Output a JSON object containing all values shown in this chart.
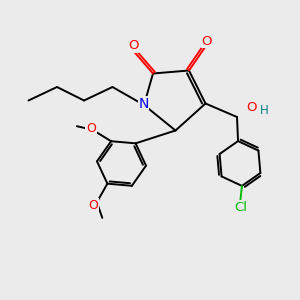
{
  "bg_color": "#ebebeb",
  "atom_colors": {
    "O": "#ff0000",
    "N": "#0000ff",
    "Cl": "#00bb00",
    "C": "#000000",
    "H": "#008080"
  },
  "bond_color": "#000000",
  "bond_width": 1.4,
  "figsize": [
    3.0,
    3.0
  ],
  "dpi": 100
}
